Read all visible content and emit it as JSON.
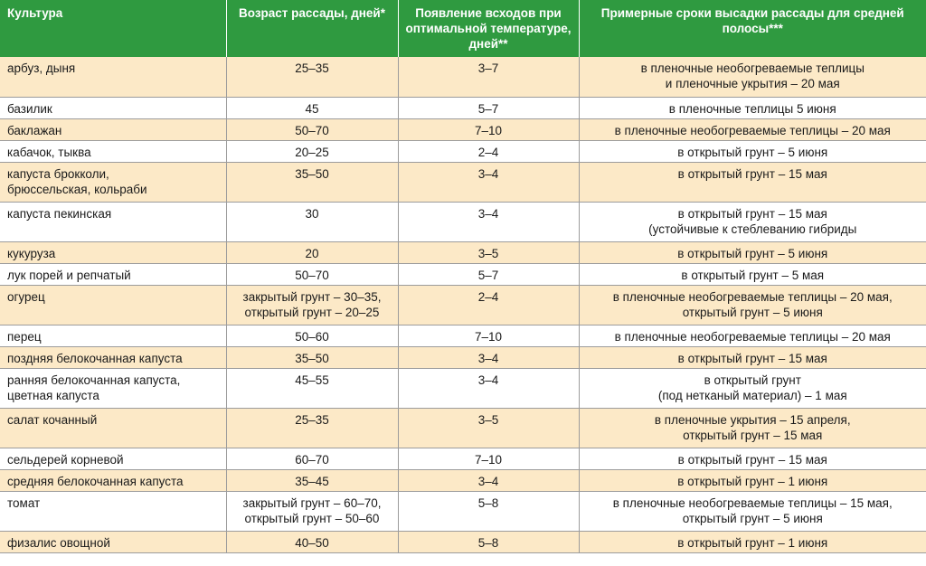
{
  "header": {
    "culture": "Культура",
    "age": "Возраст  рассады, дней*",
    "sprouting": "Появление  всходов при оптимальной температуре, дней**",
    "planting": "Примерные сроки высадки рассады для средней полосы***"
  },
  "rows": [
    {
      "culture": "арбуз, дыня",
      "age": "25–35",
      "sprout": "3–7",
      "plant": "в пленочные необогреваемые теплицы\nи пленочные укрытия – 20 мая"
    },
    {
      "culture": "базилик",
      "age": "45",
      "sprout": "5–7",
      "plant": "в пленочные теплицы  5 июня"
    },
    {
      "culture": "баклажан",
      "age": "50–70",
      "sprout": "7–10",
      "plant": "в пленочные необогреваемые теплицы – 20 мая"
    },
    {
      "culture": "кабачок, тыква",
      "age": "20–25",
      "sprout": "2–4",
      "plant": "в открытый грунт – 5 июня"
    },
    {
      "culture": "капуста брокколи,\nбрюссельская, кольраби",
      "age": "35–50",
      "sprout": "3–4",
      "plant": "в открытый грунт – 15 мая"
    },
    {
      "culture": "капуста пекинская",
      "age": "30",
      "sprout": "3–4",
      "plant": "в открытый грунт – 15 мая\n(устойчивые к стеблеванию гибриды"
    },
    {
      "culture": "кукуруза",
      "age": "20",
      "sprout": "3–5",
      "plant": "в открытый грунт – 5 июня"
    },
    {
      "culture": "лук порей и репчатый",
      "age": "50–70",
      "sprout": "5–7",
      "plant": "в открытый грунт – 5 мая"
    },
    {
      "culture": "огурец",
      "age": "закрытый грунт – 30–35,\nоткрытый грунт – 20–25",
      "sprout": "2–4",
      "plant": "в пленочные необогреваемые теплицы – 20 мая,\nоткрытый грунт – 5 июня"
    },
    {
      "culture": "перец",
      "age": "50–60",
      "sprout": "7–10",
      "plant": "в пленочные необогреваемые теплицы – 20 мая"
    },
    {
      "culture": "поздняя белокочанная капуста",
      "age": "35–50",
      "sprout": "3–4",
      "plant": "в открытый грунт – 15 мая"
    },
    {
      "culture": "ранняя белокочанная капуста,\nцветная капуста",
      "age": "45–55",
      "sprout": "3–4",
      "plant": "в открытый грунт\n(под нетканый материал) – 1 мая"
    },
    {
      "culture": "салат кочанный",
      "age": "25–35",
      "sprout": "3–5",
      "plant": "в пленочные укрытия – 15 апреля,\nоткрытый грунт – 15 мая"
    },
    {
      "culture": "сельдерей корневой",
      "age": "60–70",
      "sprout": "7–10",
      "plant": "в открытый грунт – 15 мая"
    },
    {
      "culture": "средняя белокочанная капуста",
      "age": "35–45",
      "sprout": "3–4",
      "plant": "в открытый грунт – 1 июня"
    },
    {
      "culture": "томат",
      "age": "закрытый грунт – 60–70,\nоткрытый грунт – 50–60",
      "sprout": "5–8",
      "plant": "в пленочные необогреваемые теплицы – 15 мая,\nоткрытый грунт – 5 июня"
    },
    {
      "culture": "физалис овощной",
      "age": "40–50",
      "sprout": "5–8",
      "plant": "в открытый грунт – 1 июня"
    }
  ]
}
